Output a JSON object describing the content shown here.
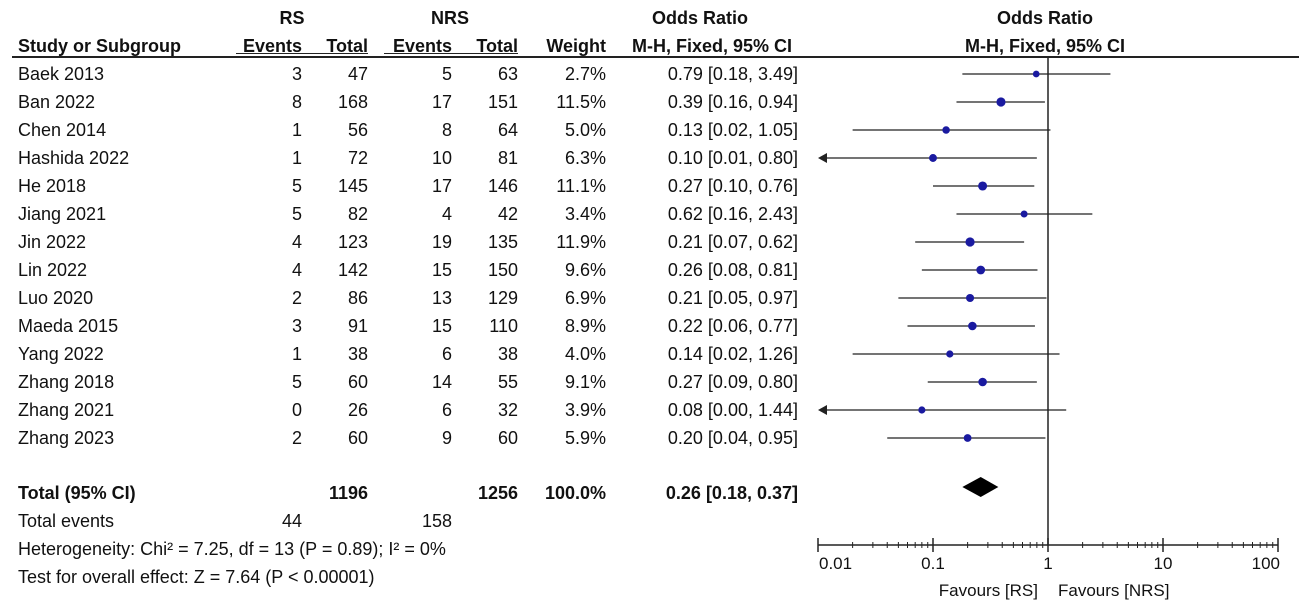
{
  "headers": {
    "rs_group": "RS",
    "nrs_group": "NRS",
    "or_title_left": "Odds Ratio",
    "or_title_right": "Odds Ratio",
    "col_study": "Study or Subgroup",
    "col_rs_events": "Events",
    "col_rs_total": "Total",
    "col_nrs_events": "Events",
    "col_nrs_total": "Total",
    "col_weight": "Weight",
    "col_ci_left": "M-H, Fixed, 95% CI",
    "col_ci_right": "M-H, Fixed, 95% CI"
  },
  "studies": [
    {
      "name": "Baek 2013",
      "rs_events": "3",
      "rs_total": "47",
      "nrs_events": "5",
      "nrs_total": "63",
      "weight": "2.7%",
      "ci_text": "0.79 [0.18, 3.49]",
      "or": 0.79,
      "lo": 0.18,
      "hi": 3.49,
      "w": 2.7
    },
    {
      "name": "Ban 2022",
      "rs_events": "8",
      "rs_total": "168",
      "nrs_events": "17",
      "nrs_total": "151",
      "weight": "11.5%",
      "ci_text": "0.39 [0.16, 0.94]",
      "or": 0.39,
      "lo": 0.16,
      "hi": 0.94,
      "w": 11.5
    },
    {
      "name": "Chen 2014",
      "rs_events": "1",
      "rs_total": "56",
      "nrs_events": "8",
      "nrs_total": "64",
      "weight": "5.0%",
      "ci_text": "0.13 [0.02, 1.05]",
      "or": 0.13,
      "lo": 0.02,
      "hi": 1.05,
      "w": 5.0
    },
    {
      "name": "Hashida 2022",
      "rs_events": "1",
      "rs_total": "72",
      "nrs_events": "10",
      "nrs_total": "81",
      "weight": "6.3%",
      "ci_text": "0.10 [0.01, 0.80]",
      "or": 0.1,
      "lo": 0.01,
      "hi": 0.8,
      "w": 6.3
    },
    {
      "name": "He 2018",
      "rs_events": "5",
      "rs_total": "145",
      "nrs_events": "17",
      "nrs_total": "146",
      "weight": "11.1%",
      "ci_text": "0.27 [0.10, 0.76]",
      "or": 0.27,
      "lo": 0.1,
      "hi": 0.76,
      "w": 11.1
    },
    {
      "name": "Jiang 2021",
      "rs_events": "5",
      "rs_total": "82",
      "nrs_events": "4",
      "nrs_total": "42",
      "weight": "3.4%",
      "ci_text": "0.62 [0.16, 2.43]",
      "or": 0.62,
      "lo": 0.16,
      "hi": 2.43,
      "w": 3.4
    },
    {
      "name": "Jin 2022",
      "rs_events": "4",
      "rs_total": "123",
      "nrs_events": "19",
      "nrs_total": "135",
      "weight": "11.9%",
      "ci_text": "0.21 [0.07, 0.62]",
      "or": 0.21,
      "lo": 0.07,
      "hi": 0.62,
      "w": 11.9
    },
    {
      "name": "Lin 2022",
      "rs_events": "4",
      "rs_total": "142",
      "nrs_events": "15",
      "nrs_total": "150",
      "weight": "9.6%",
      "ci_text": "0.26 [0.08, 0.81]",
      "or": 0.26,
      "lo": 0.08,
      "hi": 0.81,
      "w": 9.6
    },
    {
      "name": "Luo 2020",
      "rs_events": "2",
      "rs_total": "86",
      "nrs_events": "13",
      "nrs_total": "129",
      "weight": "6.9%",
      "ci_text": "0.21 [0.05, 0.97]",
      "or": 0.21,
      "lo": 0.05,
      "hi": 0.97,
      "w": 6.9
    },
    {
      "name": "Maeda 2015",
      "rs_events": "3",
      "rs_total": "91",
      "nrs_events": "15",
      "nrs_total": "110",
      "weight": "8.9%",
      "ci_text": "0.22 [0.06, 0.77]",
      "or": 0.22,
      "lo": 0.06,
      "hi": 0.77,
      "w": 8.9
    },
    {
      "name": "Yang 2022",
      "rs_events": "1",
      "rs_total": "38",
      "nrs_events": "6",
      "nrs_total": "38",
      "weight": "4.0%",
      "ci_text": "0.14 [0.02, 1.26]",
      "or": 0.14,
      "lo": 0.02,
      "hi": 1.26,
      "w": 4.0
    },
    {
      "name": "Zhang 2018",
      "rs_events": "5",
      "rs_total": "60",
      "nrs_events": "14",
      "nrs_total": "55",
      "weight": "9.1%",
      "ci_text": "0.27 [0.09, 0.80]",
      "or": 0.27,
      "lo": 0.09,
      "hi": 0.8,
      "w": 9.1
    },
    {
      "name": "Zhang 2021",
      "rs_events": "0",
      "rs_total": "26",
      "nrs_events": "6",
      "nrs_total": "32",
      "weight": "3.9%",
      "ci_text": "0.08 [0.00, 1.44]",
      "or": 0.08,
      "lo": 0.0,
      "hi": 1.44,
      "w": 3.9
    },
    {
      "name": "Zhang 2023",
      "rs_events": "2",
      "rs_total": "60",
      "nrs_events": "9",
      "nrs_total": "60",
      "weight": "5.9%",
      "ci_text": "0.20 [0.04, 0.95]",
      "or": 0.2,
      "lo": 0.04,
      "hi": 0.95,
      "w": 5.9
    }
  ],
  "total": {
    "label": "Total (95% CI)",
    "rs_total": "1196",
    "nrs_total": "1256",
    "weight": "100.0%",
    "ci_text": "0.26 [0.18, 0.37]",
    "or": 0.26,
    "lo": 0.18,
    "hi": 0.37
  },
  "total_events": {
    "label": "Total events",
    "rs": "44",
    "nrs": "158"
  },
  "heterogeneity": "Heterogeneity: Chi² = 7.25, df = 13 (P = 0.89); I² = 0%",
  "overall_effect": "Test for overall effect: Z = 7.64 (P < 0.00001)",
  "axis": {
    "ticks": [
      "0.01",
      "0.1",
      "1",
      "10",
      "100"
    ],
    "favours_left": "Favours [RS]",
    "favours_right": "Favours [NRS]"
  },
  "chart_data": {
    "type": "forest",
    "title": "Odds Ratio M-H, Fixed, 95% CI",
    "xscale": "log",
    "xlim": [
      0.01,
      100
    ],
    "reference_line": 1,
    "x_ticks": [
      0.01,
      0.1,
      1,
      10,
      100
    ],
    "x_tick_labels": [
      "0.01",
      "0.1",
      "1",
      "10",
      "100"
    ],
    "xlabel_left": "Favours [RS]",
    "xlabel_right": "Favours [NRS]",
    "studies": [
      "Baek 2013",
      "Ban 2022",
      "Chen 2014",
      "Hashida 2022",
      "He 2018",
      "Jiang 2021",
      "Jin 2022",
      "Lin 2022",
      "Luo 2020",
      "Maeda 2015",
      "Yang 2022",
      "Zhang 2018",
      "Zhang 2021",
      "Zhang 2023"
    ],
    "odds_ratio": [
      0.79,
      0.39,
      0.13,
      0.1,
      0.27,
      0.62,
      0.21,
      0.26,
      0.21,
      0.22,
      0.14,
      0.27,
      0.08,
      0.2
    ],
    "ci_lower": [
      0.18,
      0.16,
      0.02,
      0.01,
      0.1,
      0.16,
      0.07,
      0.08,
      0.05,
      0.06,
      0.02,
      0.09,
      0.0,
      0.04
    ],
    "ci_upper": [
      3.49,
      0.94,
      1.05,
      0.8,
      0.76,
      2.43,
      0.62,
      0.81,
      0.97,
      0.77,
      1.26,
      0.8,
      1.44,
      0.95
    ],
    "weights_percent": [
      2.7,
      11.5,
      5.0,
      6.3,
      11.1,
      3.4,
      11.9,
      9.6,
      6.9,
      8.9,
      4.0,
      9.1,
      3.9,
      5.9
    ],
    "pooled": {
      "odds_ratio": 0.26,
      "ci_lower": 0.18,
      "ci_upper": 0.37
    },
    "colors": {
      "study_marker": "#1a1aa0",
      "line": "#222222",
      "pooled_marker": "#000000"
    }
  }
}
